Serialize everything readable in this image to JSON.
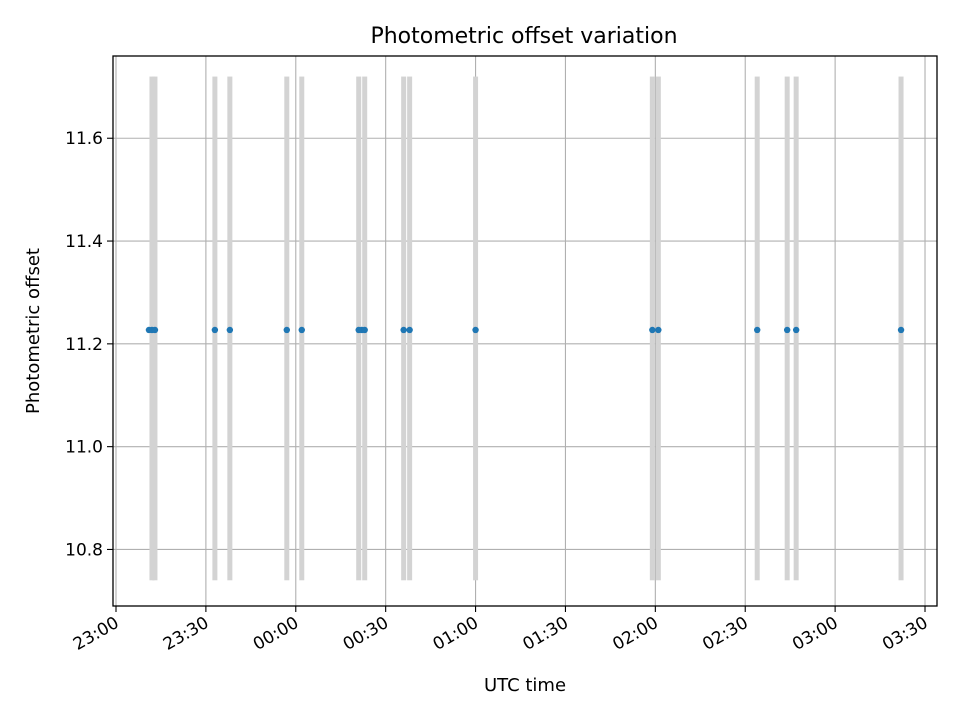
{
  "chart_data": {
    "type": "scatter",
    "title": "Photometric offset variation",
    "xlabel": "UTC time",
    "ylabel": "Photometric offset",
    "xlim": [
      "22:59",
      "03:34"
    ],
    "ylim": [
      10.69,
      11.76
    ],
    "grid": true,
    "xticks": [
      "23:00",
      "23:30",
      "00:00",
      "00:30",
      "01:00",
      "01:30",
      "02:00",
      "02:30",
      "03:00",
      "03:30"
    ],
    "yticks": [
      "10.8",
      "11.0",
      "11.2",
      "11.4",
      "11.6"
    ],
    "bands": {
      "y_range": [
        10.74,
        11.72
      ],
      "color": "#d3d3d3",
      "times": [
        "23:12",
        "23:13",
        "23:33",
        "23:38",
        "23:57",
        "00:02",
        "00:21",
        "00:23",
        "00:36",
        "00:38",
        "01:00",
        "01:59",
        "02:01",
        "02:34",
        "02:44",
        "02:47",
        "03:22"
      ]
    },
    "points": {
      "color": "#1f77b4",
      "x": [
        "23:11",
        "23:12",
        "23:13",
        "23:33",
        "23:38",
        "23:57",
        "00:02",
        "00:21",
        "00:22",
        "00:23",
        "00:36",
        "00:38",
        "01:00",
        "01:59",
        "02:01",
        "02:34",
        "02:44",
        "02:47",
        "03:22"
      ],
      "y": [
        11.227,
        11.227,
        11.227,
        11.227,
        11.227,
        11.227,
        11.227,
        11.227,
        11.227,
        11.227,
        11.227,
        11.227,
        11.227,
        11.227,
        11.227,
        11.227,
        11.227,
        11.227,
        11.227
      ]
    }
  }
}
